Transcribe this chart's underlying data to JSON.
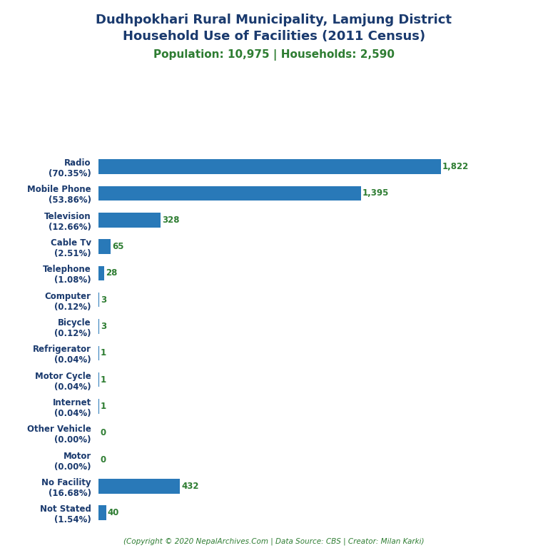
{
  "title_line1": "Dudhpokhari Rural Municipality, Lamjung District",
  "title_line2": "Household Use of Facilities (2011 Census)",
  "subtitle": "Population: 10,975 | Households: 2,590",
  "title_color": "#1a3a6e",
  "subtitle_color": "#2e7d32",
  "footer": "(Copyright © 2020 NepalArchives.Com | Data Source: CBS | Creator: Milan Karki)",
  "categories": [
    "Not Stated\n(1.54%)",
    "No Facility\n(16.68%)",
    "Motor\n(0.00%)",
    "Other Vehicle\n(0.00%)",
    "Internet\n(0.04%)",
    "Motor Cycle\n(0.04%)",
    "Refrigerator\n(0.04%)",
    "Bicycle\n(0.12%)",
    "Computer\n(0.12%)",
    "Telephone\n(1.08%)",
    "Cable Tv\n(2.51%)",
    "Television\n(12.66%)",
    "Mobile Phone\n(53.86%)",
    "Radio\n(70.35%)"
  ],
  "values": [
    40,
    432,
    0,
    0,
    1,
    1,
    1,
    3,
    3,
    28,
    65,
    328,
    1395,
    1822
  ],
  "bar_color": "#2979b8",
  "value_color": "#2e7d32",
  "xlim": [
    0,
    2100
  ],
  "figsize": [
    7.68,
    7.68
  ],
  "dpi": 100
}
